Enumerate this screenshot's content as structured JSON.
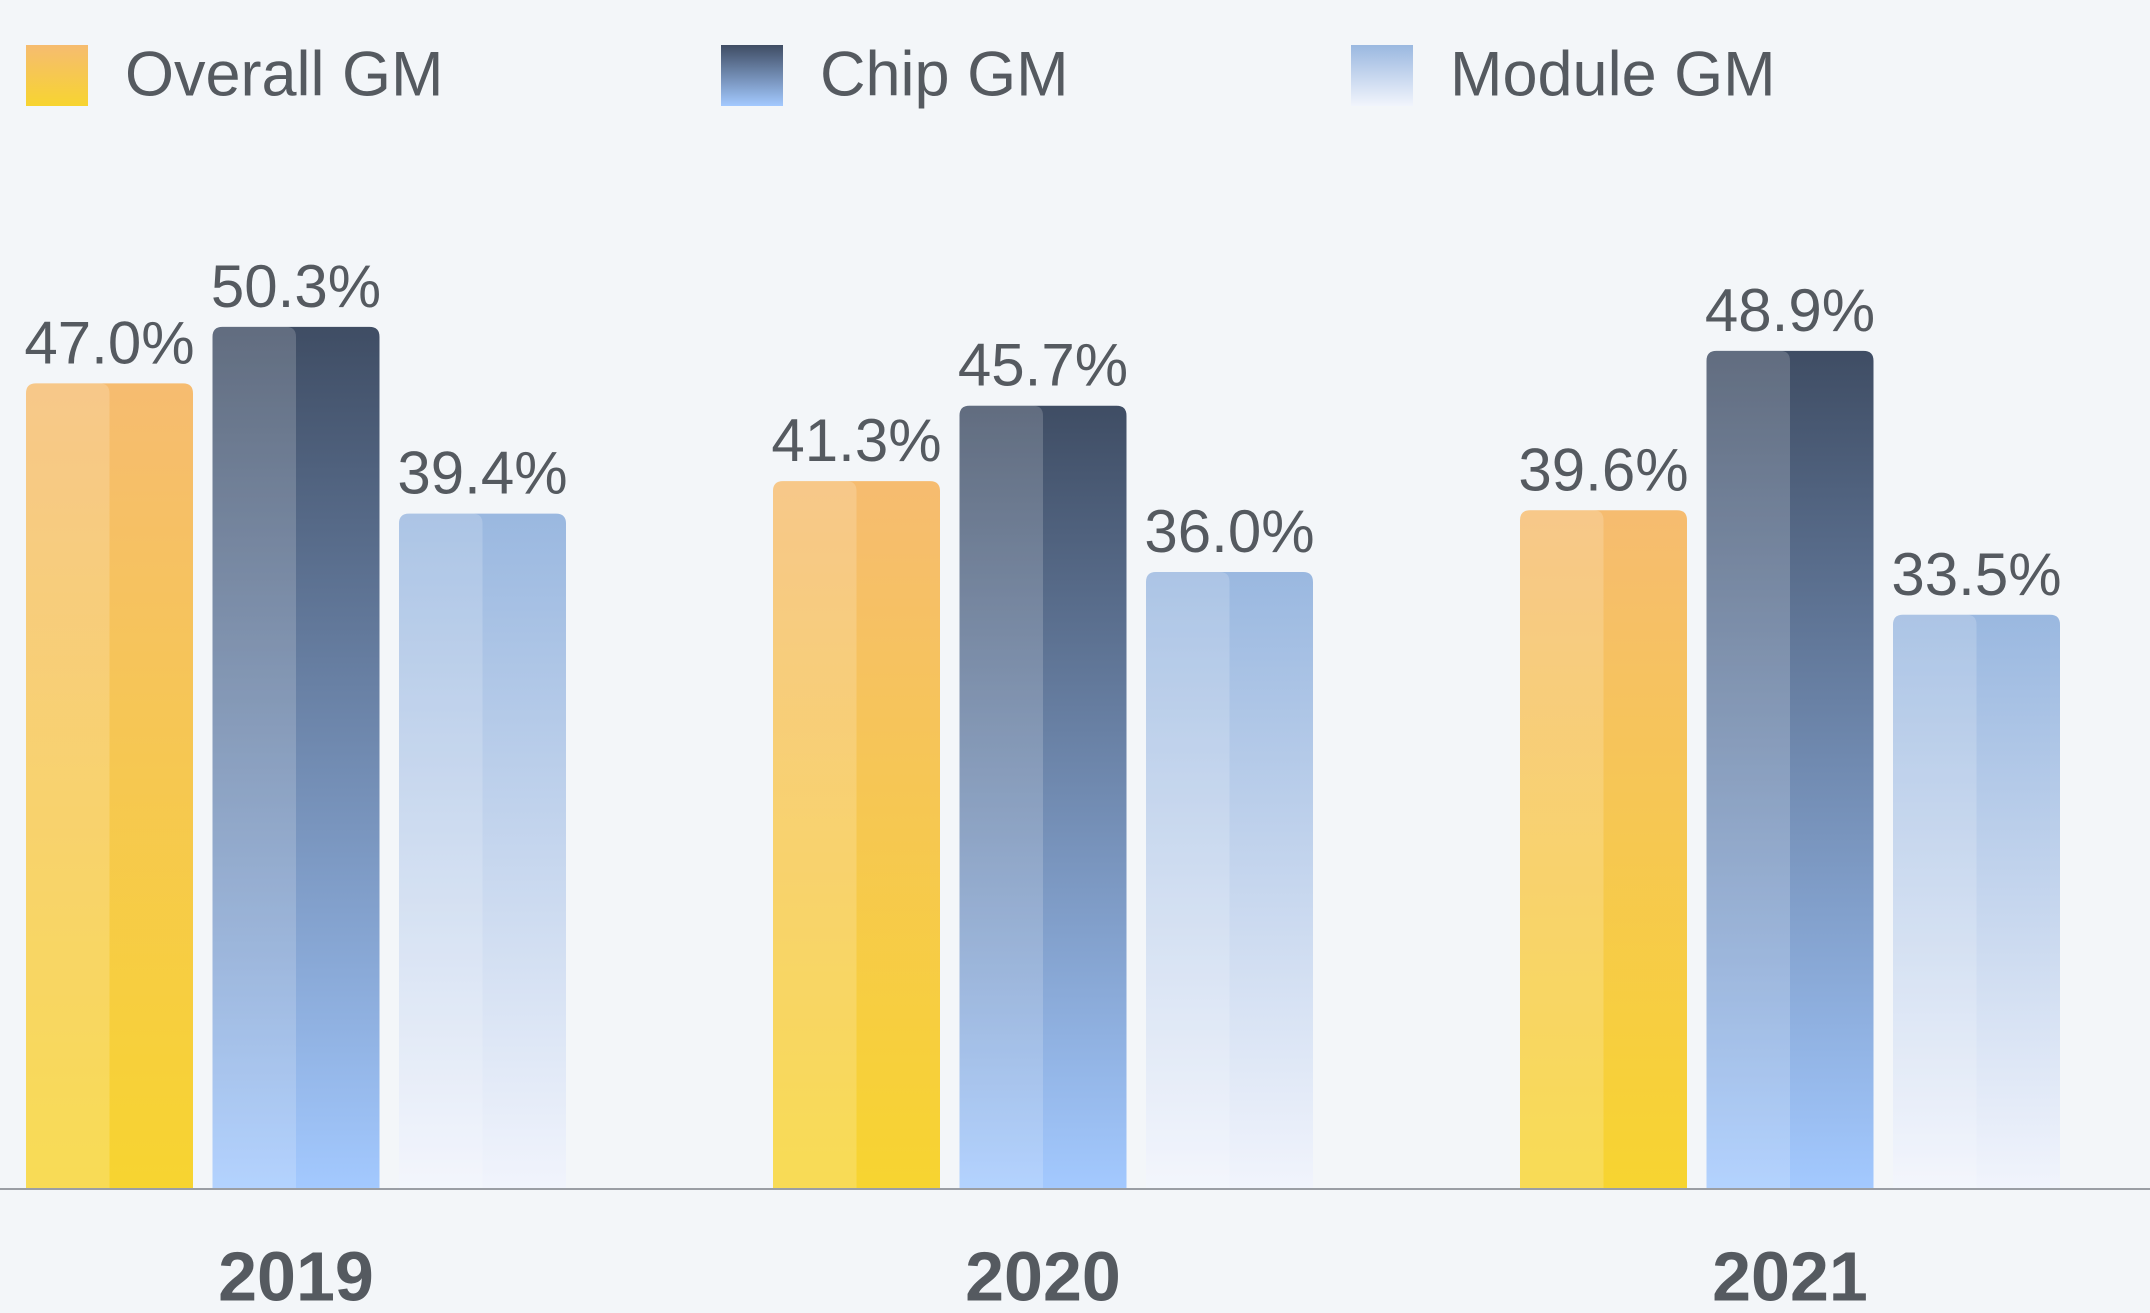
{
  "chart_data": {
    "type": "bar",
    "categories": [
      "2019",
      "2020",
      "2021"
    ],
    "series": [
      {
        "name": "Overall GM",
        "color": [
          "#f6bc70",
          "#f7d430"
        ],
        "values": [
          47.0,
          41.3,
          39.6
        ],
        "value_labels": [
          "47.0%",
          "41.3%",
          "39.6%"
        ]
      },
      {
        "name": "Chip GM",
        "color": [
          "#3f4d64",
          "#a3c9ff"
        ],
        "values": [
          50.3,
          45.7,
          48.9
        ],
        "value_labels": [
          "50.3%",
          "45.7%",
          "48.9%"
        ]
      },
      {
        "name": "Module GM",
        "color": [
          "#9ab8e0",
          "#f1f4fc"
        ],
        "values": [
          39.4,
          36.0,
          33.5
        ],
        "value_labels": [
          "39.4%",
          "36.0%",
          "33.5%"
        ]
      }
    ]
  }
}
